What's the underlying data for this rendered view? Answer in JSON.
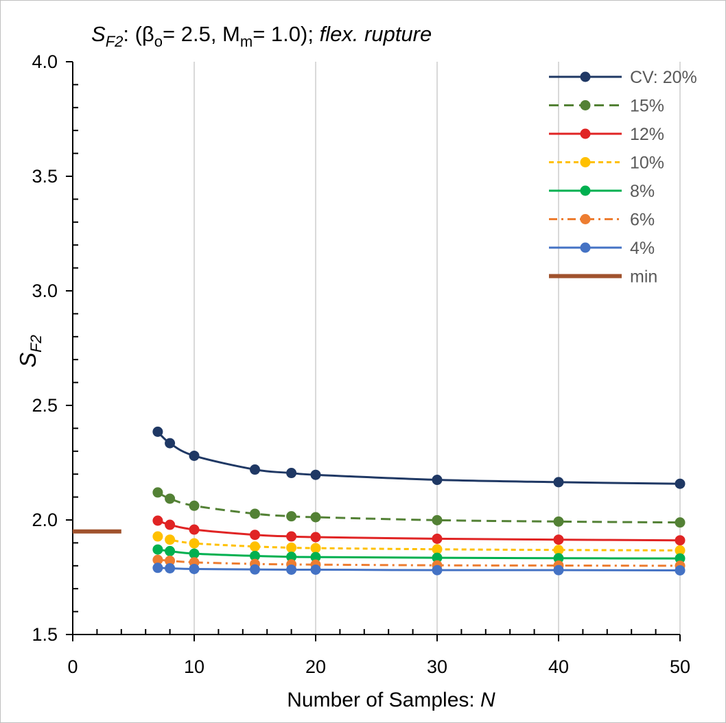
{
  "chart_data": {
    "type": "line",
    "title": {
      "symbol": "S",
      "symbol_sub": "F2",
      "beta_prefix": ": (β",
      "beta_sub": "o",
      "mid": "= 2.5, M",
      "m_sub": "m",
      "end": "= 1.0); ",
      "italic_tail": "flex. rupture"
    },
    "ylabel": {
      "main": "S",
      "sub": "F2"
    },
    "xlabel": {
      "main": "Number of Samples: ",
      "italic": "N"
    },
    "xlim": [
      0,
      50
    ],
    "ylim": [
      1.5,
      4.0
    ],
    "xticks": [
      0,
      10,
      20,
      30,
      40,
      50
    ],
    "yticks": [
      "1.5",
      "2.0",
      "2.5",
      "3.0",
      "3.5",
      "4.0"
    ],
    "grid": {
      "vertical": true,
      "horizontal": false
    },
    "legend_position": "top-right",
    "x": [
      7,
      8,
      10,
      15,
      18,
      20,
      30,
      40,
      50
    ],
    "series": [
      {
        "name": "CV: 20%",
        "color": "#1f3864",
        "dash": "solid",
        "values": [
          2.385,
          2.335,
          2.28,
          2.22,
          2.205,
          2.197,
          2.175,
          2.165,
          2.158
        ]
      },
      {
        "name": "15%",
        "color": "#538135",
        "dash": "dash",
        "values": [
          2.12,
          2.093,
          2.062,
          2.027,
          2.016,
          2.012,
          1.999,
          1.993,
          1.989
        ]
      },
      {
        "name": "12%",
        "color": "#e02424",
        "dash": "solid",
        "values": [
          1.997,
          1.979,
          1.958,
          1.935,
          1.928,
          1.925,
          1.918,
          1.914,
          1.911
        ]
      },
      {
        "name": "10%",
        "color": "#ffc000",
        "dash": "short-dash",
        "values": [
          1.928,
          1.914,
          1.898,
          1.884,
          1.879,
          1.877,
          1.872,
          1.869,
          1.867
        ]
      },
      {
        "name": "8%",
        "color": "#00b050",
        "dash": "solid",
        "values": [
          1.871,
          1.864,
          1.853,
          1.843,
          1.839,
          1.838,
          1.835,
          1.833,
          1.832
        ]
      },
      {
        "name": "6%",
        "color": "#ed7d31",
        "dash": "dash-dot",
        "values": [
          1.826,
          1.822,
          1.815,
          1.808,
          1.806,
          1.805,
          1.802,
          1.801,
          1.8
        ]
      },
      {
        "name": "4%",
        "color": "#4472c4",
        "dash": "solid",
        "values": [
          1.791,
          1.789,
          1.786,
          1.784,
          1.783,
          1.783,
          1.781,
          1.781,
          1.78
        ]
      }
    ],
    "min_line": {
      "name": "min",
      "color": "#a0522d",
      "x": [
        0,
        4
      ],
      "y": 1.95
    }
  }
}
